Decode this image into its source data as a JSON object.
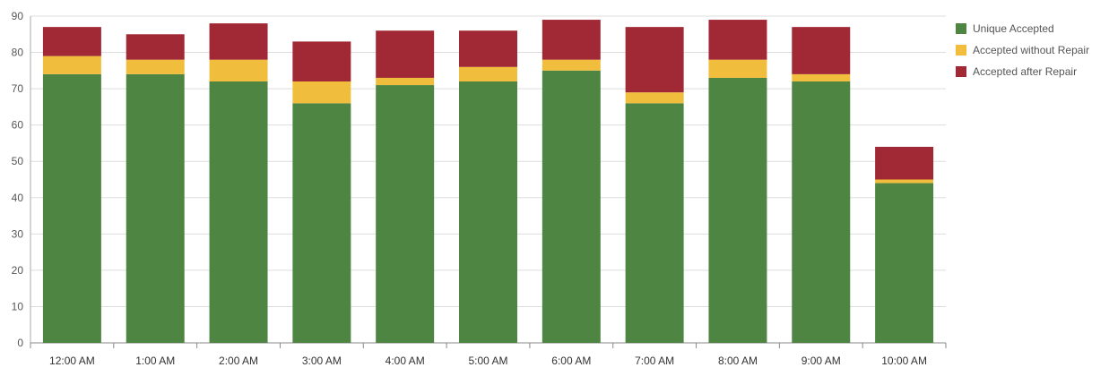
{
  "chart_data": {
    "type": "bar",
    "stacked": true,
    "categories": [
      "12:00 AM",
      "1:00 AM",
      "2:00 AM",
      "3:00 AM",
      "4:00 AM",
      "5:00 AM",
      "6:00 AM",
      "7:00 AM",
      "8:00 AM",
      "9:00 AM",
      "10:00 AM"
    ],
    "series": [
      {
        "name": "Unique Accepted",
        "color": "#4e8542",
        "values": [
          74,
          74,
          72,
          66,
          71,
          72,
          75,
          66,
          73,
          72,
          44
        ]
      },
      {
        "name": "Accepted without Repair",
        "color": "#f0bd3c",
        "values": [
          5,
          4,
          6,
          6,
          2,
          4,
          3,
          3,
          5,
          2,
          1
        ]
      },
      {
        "name": "Accepted after Repair",
        "color": "#a12835",
        "values": [
          8,
          7,
          10,
          11,
          13,
          10,
          11,
          18,
          11,
          13,
          9
        ]
      }
    ],
    "yticks": [
      0,
      10,
      20,
      30,
      40,
      50,
      60,
      70,
      80,
      90
    ],
    "ylim": [
      0,
      90
    ],
    "grid": true,
    "legend_position": "right",
    "title": "",
    "xlabel": "",
    "ylabel": ""
  }
}
